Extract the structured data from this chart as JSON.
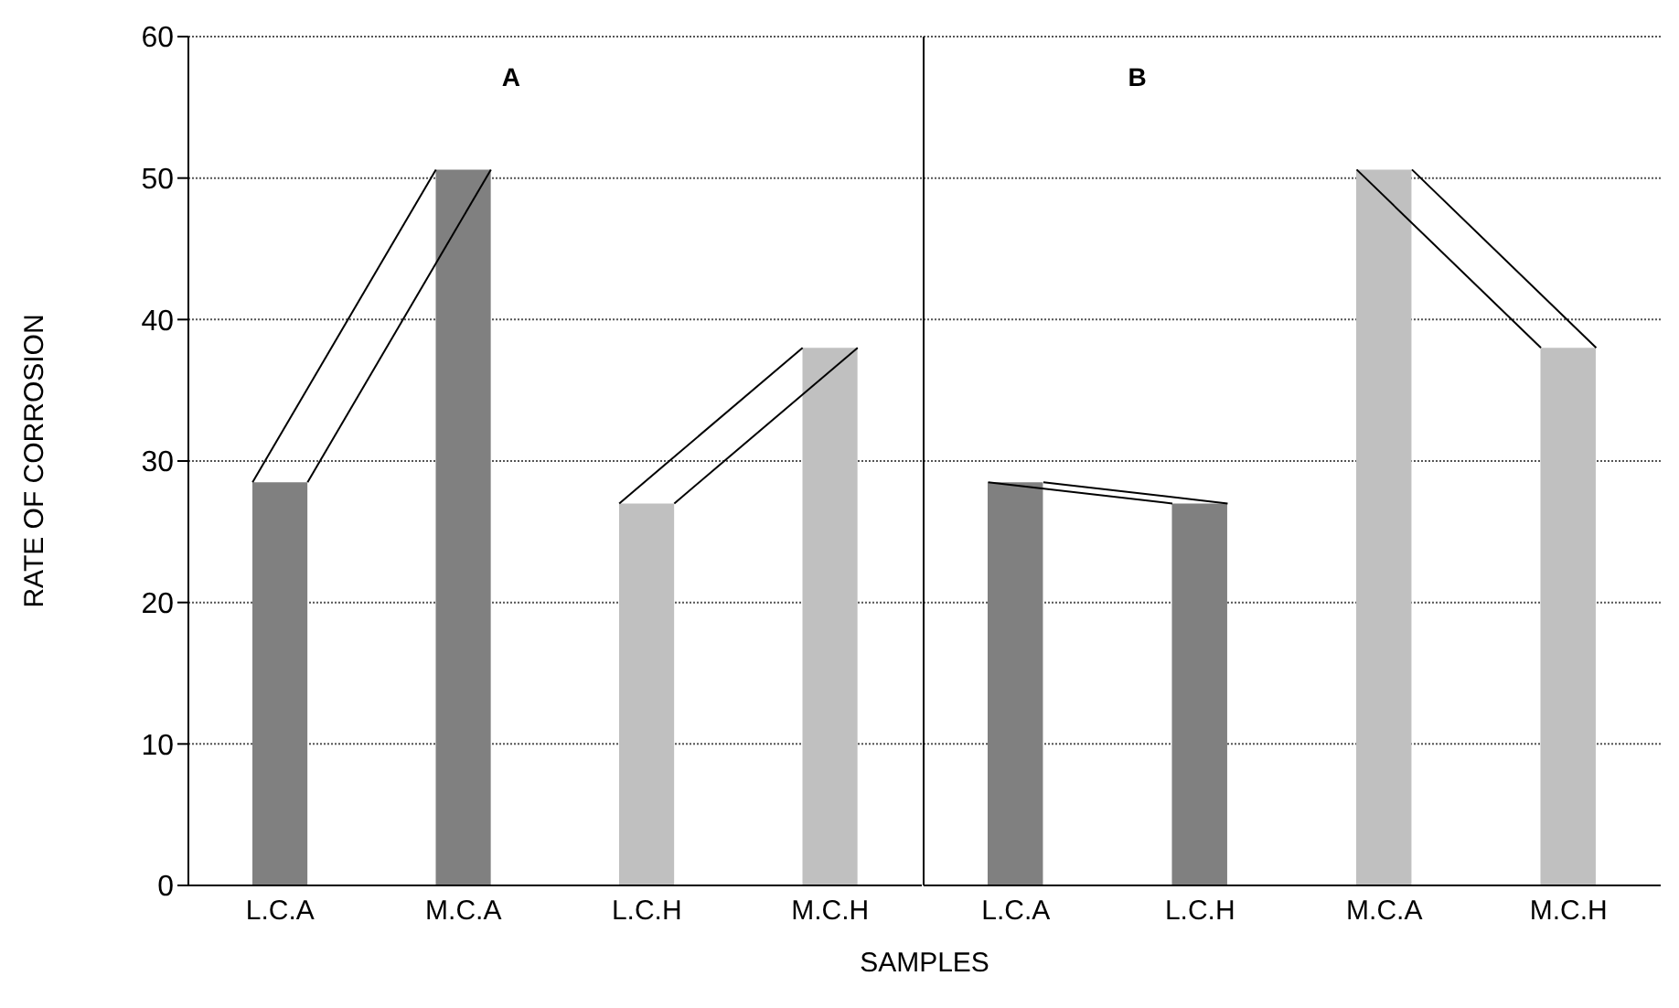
{
  "chart_data": [
    {
      "type": "bar",
      "title": "A",
      "ylabel": "RATE OF CORROSION",
      "xlabel": "SAMPLES",
      "categories": [
        "L.C.A",
        "M.C.A",
        "L.C.H",
        "M.C.H"
      ],
      "values": [
        28.5,
        50.6,
        27,
        38
      ],
      "colors": [
        "#808080",
        "#808080",
        "#c0c0c0",
        "#c0c0c0"
      ],
      "ylim": [
        0,
        60
      ],
      "yticks": [
        0,
        10,
        20,
        30,
        40,
        50,
        60
      ],
      "grid": "y",
      "legend": false
    },
    {
      "type": "bar",
      "title": "B",
      "categories": [
        "L.C.A",
        "L.C.H",
        "M.C.A",
        "M.C.H"
      ],
      "values": [
        28.5,
        27,
        50.6,
        38
      ],
      "colors": [
        "#808080",
        "#808080",
        "#c0c0c0",
        "#c0c0c0"
      ],
      "ylim": [
        0,
        60
      ],
      "yticks": [
        0,
        10,
        20,
        30,
        40,
        50,
        60
      ],
      "grid": "y",
      "legend": false,
      "tick_labels": "x"
    }
  ]
}
